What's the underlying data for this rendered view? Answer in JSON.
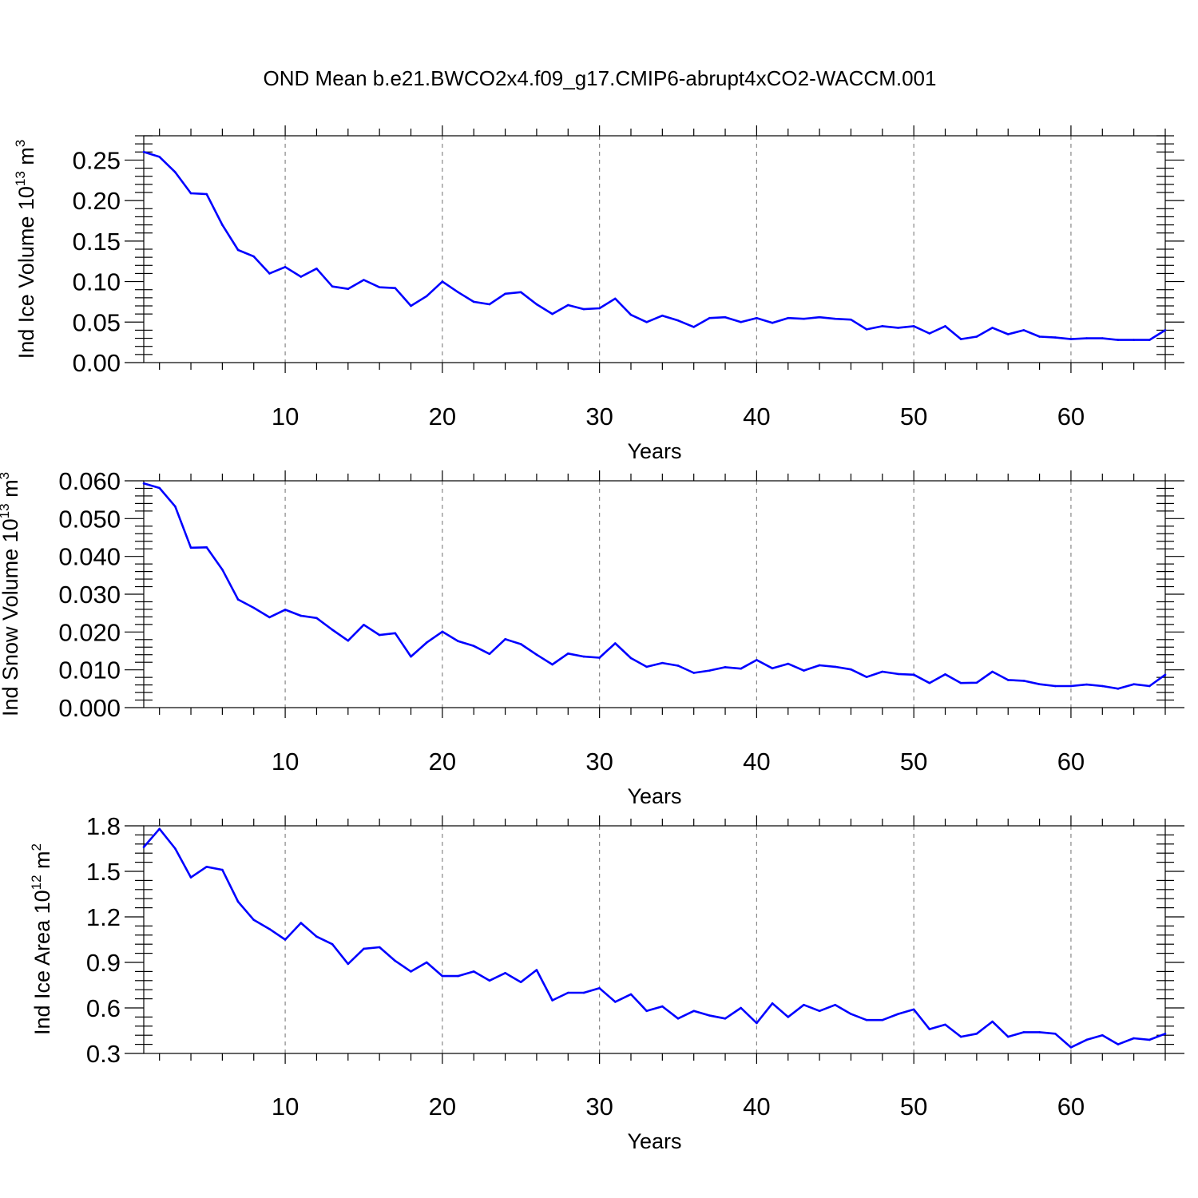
{
  "title": "OND Mean b.e21.BWCO2x4.f09_g17.CMIP6-abrupt4xCO2-WACCM.001",
  "colors": {
    "series": "#0000ff",
    "axes": "#000000",
    "grid": "#888888"
  },
  "chart_data": [
    {
      "type": "line",
      "xlabel": "Years",
      "ylabel": {
        "prefix": "Ind Ice Volume 10",
        "exp": "13",
        "unit": " m",
        "unit_exp": "3"
      },
      "xlim": [
        1,
        66
      ],
      "ylim": [
        0.0,
        0.28
      ],
      "xticks": [
        10,
        20,
        30,
        40,
        50,
        60
      ],
      "xtick_labels": [
        "10",
        "20",
        "30",
        "40",
        "50",
        "60"
      ],
      "yticks": [
        0.0,
        0.05,
        0.1,
        0.15,
        0.2,
        0.25
      ],
      "ytick_labels": [
        "0.00",
        "0.05",
        "0.10",
        "0.15",
        "0.20",
        "0.25"
      ],
      "grid": "vertical dashed at x ticks",
      "series": [
        {
          "name": "Ind Ice Volume",
          "x": [
            1,
            2,
            3,
            4,
            5,
            6,
            7,
            8,
            9,
            10,
            11,
            12,
            13,
            14,
            15,
            16,
            17,
            18,
            19,
            20,
            21,
            22,
            23,
            24,
            25,
            26,
            27,
            28,
            29,
            30,
            31,
            32,
            33,
            34,
            35,
            36,
            37,
            38,
            39,
            40,
            41,
            42,
            43,
            44,
            45,
            46,
            47,
            48,
            49,
            50,
            51,
            52,
            53,
            54,
            55,
            56,
            57,
            58,
            59,
            60,
            61,
            62,
            63,
            64,
            65,
            66
          ],
          "values": [
            0.26,
            0.254,
            0.235,
            0.209,
            0.208,
            0.17,
            0.139,
            0.131,
            0.11,
            0.118,
            0.106,
            0.116,
            0.094,
            0.091,
            0.102,
            0.093,
            0.092,
            0.07,
            0.082,
            0.1,
            0.087,
            0.075,
            0.072,
            0.085,
            0.087,
            0.072,
            0.06,
            0.071,
            0.066,
            0.067,
            0.079,
            0.059,
            0.05,
            0.058,
            0.052,
            0.044,
            0.055,
            0.056,
            0.05,
            0.055,
            0.049,
            0.055,
            0.054,
            0.056,
            0.054,
            0.053,
            0.041,
            0.045,
            0.043,
            0.045,
            0.036,
            0.045,
            0.029,
            0.032,
            0.043,
            0.035,
            0.04,
            0.032,
            0.031,
            0.029,
            0.03,
            0.03,
            0.028,
            0.028,
            0.028,
            0.04
          ]
        }
      ]
    },
    {
      "type": "line",
      "xlabel": "Years",
      "ylabel": {
        "prefix": "Ind Snow Volume 10",
        "exp": "13",
        "unit": " m",
        "unit_exp": "3"
      },
      "xlim": [
        1,
        66
      ],
      "ylim": [
        0.0,
        0.06
      ],
      "xticks": [
        10,
        20,
        30,
        40,
        50,
        60
      ],
      "xtick_labels": [
        "10",
        "20",
        "30",
        "40",
        "50",
        "60"
      ],
      "yticks": [
        0.0,
        0.01,
        0.02,
        0.03,
        0.04,
        0.05,
        0.06
      ],
      "ytick_labels": [
        "0.000",
        "0.010",
        "0.020",
        "0.030",
        "0.040",
        "0.050",
        "0.060"
      ],
      "grid": "vertical dashed at x ticks",
      "series": [
        {
          "name": "Ind Snow Volume",
          "x": [
            1,
            2,
            3,
            4,
            5,
            6,
            7,
            8,
            9,
            10,
            11,
            12,
            13,
            14,
            15,
            16,
            17,
            18,
            19,
            20,
            21,
            22,
            23,
            24,
            25,
            26,
            27,
            28,
            29,
            30,
            31,
            32,
            33,
            34,
            35,
            36,
            37,
            38,
            39,
            40,
            41,
            42,
            43,
            44,
            45,
            46,
            47,
            48,
            49,
            50,
            51,
            52,
            53,
            54,
            55,
            56,
            57,
            58,
            59,
            60,
            61,
            62,
            63,
            64,
            65,
            66
          ],
          "values": [
            0.0593,
            0.0581,
            0.0532,
            0.0423,
            0.0424,
            0.0365,
            0.0286,
            0.0264,
            0.0239,
            0.0259,
            0.0243,
            0.0237,
            0.0206,
            0.0177,
            0.0219,
            0.0192,
            0.0197,
            0.0135,
            0.0172,
            0.0201,
            0.0176,
            0.0163,
            0.0142,
            0.0181,
            0.0168,
            0.014,
            0.0114,
            0.0143,
            0.0135,
            0.0132,
            0.017,
            0.0131,
            0.0108,
            0.0118,
            0.0111,
            0.0092,
            0.0098,
            0.0107,
            0.0103,
            0.0126,
            0.0104,
            0.0116,
            0.0098,
            0.0112,
            0.0108,
            0.0101,
            0.0081,
            0.0095,
            0.0089,
            0.0087,
            0.0065,
            0.0088,
            0.0065,
            0.0066,
            0.0095,
            0.0073,
            0.0071,
            0.0062,
            0.0057,
            0.0057,
            0.0061,
            0.0057,
            0.005,
            0.0062,
            0.0057,
            0.0087
          ]
        }
      ]
    },
    {
      "type": "line",
      "xlabel": "Years",
      "ylabel": {
        "prefix": "Ind Ice Area 10",
        "exp": "12",
        "unit": " m",
        "unit_exp": "2"
      },
      "xlim": [
        1,
        66
      ],
      "ylim": [
        0.3,
        1.8
      ],
      "xticks": [
        10,
        20,
        30,
        40,
        50,
        60
      ],
      "xtick_labels": [
        "10",
        "20",
        "30",
        "40",
        "50",
        "60"
      ],
      "yticks": [
        0.3,
        0.6,
        0.9,
        1.2,
        1.5,
        1.8
      ],
      "ytick_labels": [
        "0.3",
        "0.6",
        "0.9",
        "1.2",
        "1.5",
        "1.8"
      ],
      "grid": "vertical dashed at x ticks",
      "series": [
        {
          "name": "Ind Ice Area",
          "x": [
            1,
            2,
            3,
            4,
            5,
            6,
            7,
            8,
            9,
            10,
            11,
            12,
            13,
            14,
            15,
            16,
            17,
            18,
            19,
            20,
            21,
            22,
            23,
            24,
            25,
            26,
            27,
            28,
            29,
            30,
            31,
            32,
            33,
            34,
            35,
            36,
            37,
            38,
            39,
            40,
            41,
            42,
            43,
            44,
            45,
            46,
            47,
            48,
            49,
            50,
            51,
            52,
            53,
            54,
            55,
            56,
            57,
            58,
            59,
            60,
            61,
            62,
            63,
            64,
            65,
            66
          ],
          "values": [
            1.66,
            1.78,
            1.65,
            1.46,
            1.53,
            1.51,
            1.3,
            1.18,
            1.12,
            1.05,
            1.16,
            1.07,
            1.02,
            0.89,
            0.99,
            1.0,
            0.91,
            0.84,
            0.9,
            0.81,
            0.81,
            0.84,
            0.78,
            0.83,
            0.77,
            0.85,
            0.65,
            0.7,
            0.7,
            0.73,
            0.64,
            0.69,
            0.58,
            0.61,
            0.53,
            0.58,
            0.55,
            0.53,
            0.6,
            0.5,
            0.63,
            0.54,
            0.62,
            0.58,
            0.62,
            0.56,
            0.52,
            0.52,
            0.56,
            0.59,
            0.46,
            0.49,
            0.41,
            0.43,
            0.51,
            0.41,
            0.44,
            0.44,
            0.43,
            0.34,
            0.39,
            0.42,
            0.36,
            0.4,
            0.39,
            0.43
          ]
        }
      ]
    }
  ]
}
